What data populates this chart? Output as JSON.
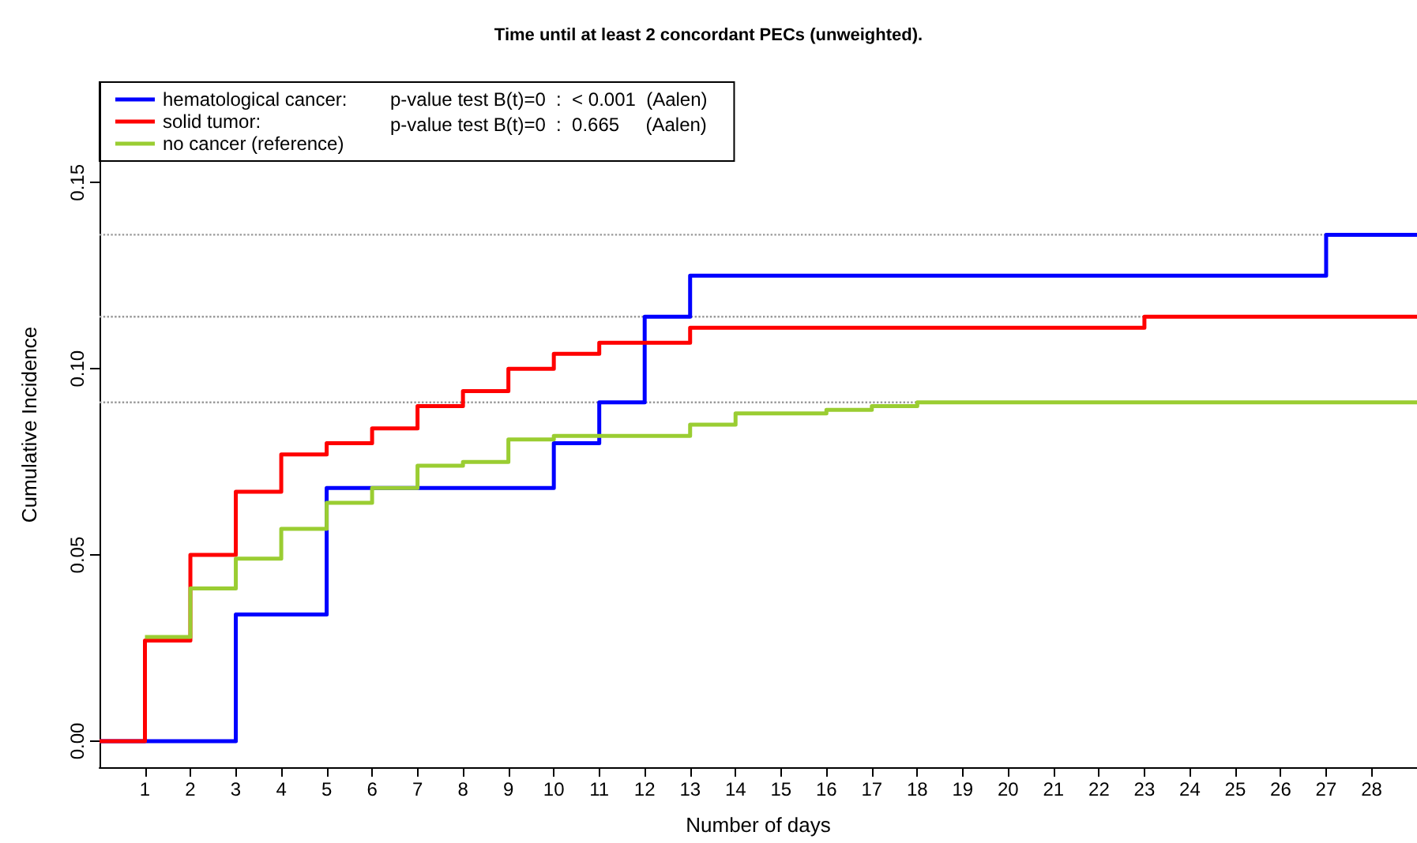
{
  "chart_data": {
    "type": "step",
    "title": "Time until at least 2 concordant PECs (unweighted).",
    "xlabel": "Number of days",
    "ylabel": "Cumulative Incidence",
    "xlim": [
      0,
      29
    ],
    "xticks": [
      1,
      2,
      3,
      4,
      5,
      6,
      7,
      8,
      9,
      10,
      11,
      12,
      13,
      14,
      15,
      16,
      17,
      18,
      19,
      20,
      21,
      22,
      23,
      24,
      25,
      26,
      27,
      28
    ],
    "ylim": [
      -0.007,
      0.177
    ],
    "yticks": [
      {
        "value": 0,
        "label": "0.00"
      },
      {
        "value": 0.05,
        "label": "0.05"
      },
      {
        "value": 0.1,
        "label": "0.10"
      },
      {
        "value": 0.15,
        "label": "0.15"
      }
    ],
    "series": [
      {
        "name": "hematological cancer:",
        "color": "#0000ff",
        "x": [
          0,
          3,
          5,
          10,
          11,
          12,
          13,
          27,
          29
        ],
        "values": [
          0,
          0.034,
          0.068,
          0.08,
          0.091,
          0.114,
          0.125,
          0.136,
          0.136
        ]
      },
      {
        "name": "solid tumor:",
        "color": "#ff0000",
        "x": [
          0,
          1,
          2,
          3,
          4,
          5,
          6,
          7,
          8,
          9,
          10,
          11,
          13,
          23,
          29
        ],
        "values": [
          0,
          0.027,
          0.05,
          0.067,
          0.077,
          0.08,
          0.084,
          0.09,
          0.094,
          0.1,
          0.104,
          0.107,
          0.111,
          0.114,
          0.114
        ]
      },
      {
        "name": "no cancer (reference)",
        "color": "#9acd32",
        "x": [
          1,
          2,
          3,
          4,
          5,
          6,
          7,
          8,
          9,
          10,
          12,
          13,
          14,
          16,
          17,
          18,
          24,
          29
        ],
        "values": [
          0.028,
          0.041,
          0.049,
          0.057,
          0.064,
          0.068,
          0.074,
          0.075,
          0.081,
          0.082,
          0.082,
          0.085,
          0.088,
          0.089,
          0.09,
          0.091,
          0.091,
          0.091
        ]
      }
    ],
    "ref_lines": [
      {
        "axis": "y",
        "value": 0.136,
        "color": "#999999",
        "line_style": "dotted"
      },
      {
        "axis": "y",
        "value": 0.114,
        "color": "#999999",
        "line_style": "dotted"
      },
      {
        "axis": "y",
        "value": 0.091,
        "color": "#999999",
        "line_style": "dotted"
      }
    ],
    "annotations": [
      "p-value test B(t)=0  :  < 0.001  (Aalen)",
      "p-value test B(t)=0  :  0.665     (Aalen)"
    ],
    "legend": "top left",
    "grid": false,
    "marker": "none",
    "line_style": "solid"
  }
}
